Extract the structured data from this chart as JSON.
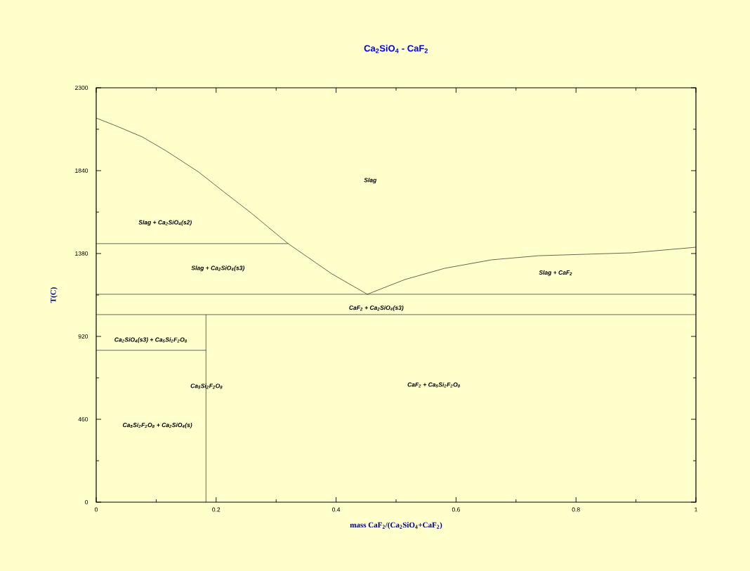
{
  "chart_data": {
    "type": "line",
    "title": "Ca$_{2}$SiO$_{4}$ - CaF$_{2}$",
    "xlabel": "mass CaF$_{2}$/(Ca$_{2}$SiO$_{4}$+CaF$_{2}$)",
    "ylabel": "T(C)",
    "xlim": [
      0,
      1
    ],
    "ylim": [
      0,
      2300
    ],
    "xticks": [
      0,
      0.2,
      0.4,
      0.6,
      0.8,
      1
    ],
    "yticks": [
      0,
      460,
      920,
      1380,
      1840,
      2300
    ],
    "grid": false,
    "marker": "none",
    "line_style": "solid",
    "series": [
      {
        "color": "#000000",
        "x": [
          0,
          0.03,
          0.077,
          0.117,
          0.171,
          0.211,
          0.258,
          0.32,
          0.393,
          0.452
        ],
        "values": [
          2132,
          2093,
          2027,
          1949,
          1832,
          1727,
          1606,
          1435,
          1267,
          1154
        ]
      },
      {
        "color": "#000000",
        "x": [
          0.452,
          0.515,
          0.581,
          0.659,
          0.738,
          0.815,
          0.893,
          1.0
        ],
        "values": [
          1154,
          1236,
          1298,
          1345,
          1368,
          1376,
          1384,
          1415
        ]
      },
      {
        "color": "#000000",
        "x": [
          0,
          0.32
        ],
        "values": [
          1435,
          1435
        ]
      },
      {
        "color": "#000000",
        "x": [
          0,
          1
        ],
        "values": [
          1154,
          1154
        ]
      },
      {
        "color": "#000000",
        "x": [
          0,
          1
        ],
        "values": [
          1041,
          1041
        ]
      },
      {
        "color": "#000000",
        "x": [
          0,
          0.183
        ],
        "values": [
          843,
          843
        ]
      },
      {
        "color": "#000000",
        "x": [
          0.183,
          0.183
        ],
        "values": [
          1041,
          0
        ]
      }
    ],
    "annotations": [
      "Slag",
      "Slag + Ca$_{2}$SiO$_{4}$(s2)",
      "Slag + Ca$_{2}$SiO$_{4}$(s3)",
      "Slag + CaF$_{2}$",
      "CaF$_{2}$ + Ca$_{2}$SiO$_{4}$(s3)",
      "Ca$_{2}$SiO$_{4}$(s3) + Ca$_{5}$Si$_{2}$F$_{2}$O$_{8}$",
      "Ca$_{5}$Si$_{2}$F$_{2}$O$_{8}$",
      "CaF$_{2}$ + Ca$_{5}$Si$_{2}$F$_{2}$O$_{8}$",
      "Ca$_{5}$Si$_{2}$F$_{2}$O$_{8}$ + Ca$_{2}$SiO$_{4}$(s)"
    ]
  }
}
